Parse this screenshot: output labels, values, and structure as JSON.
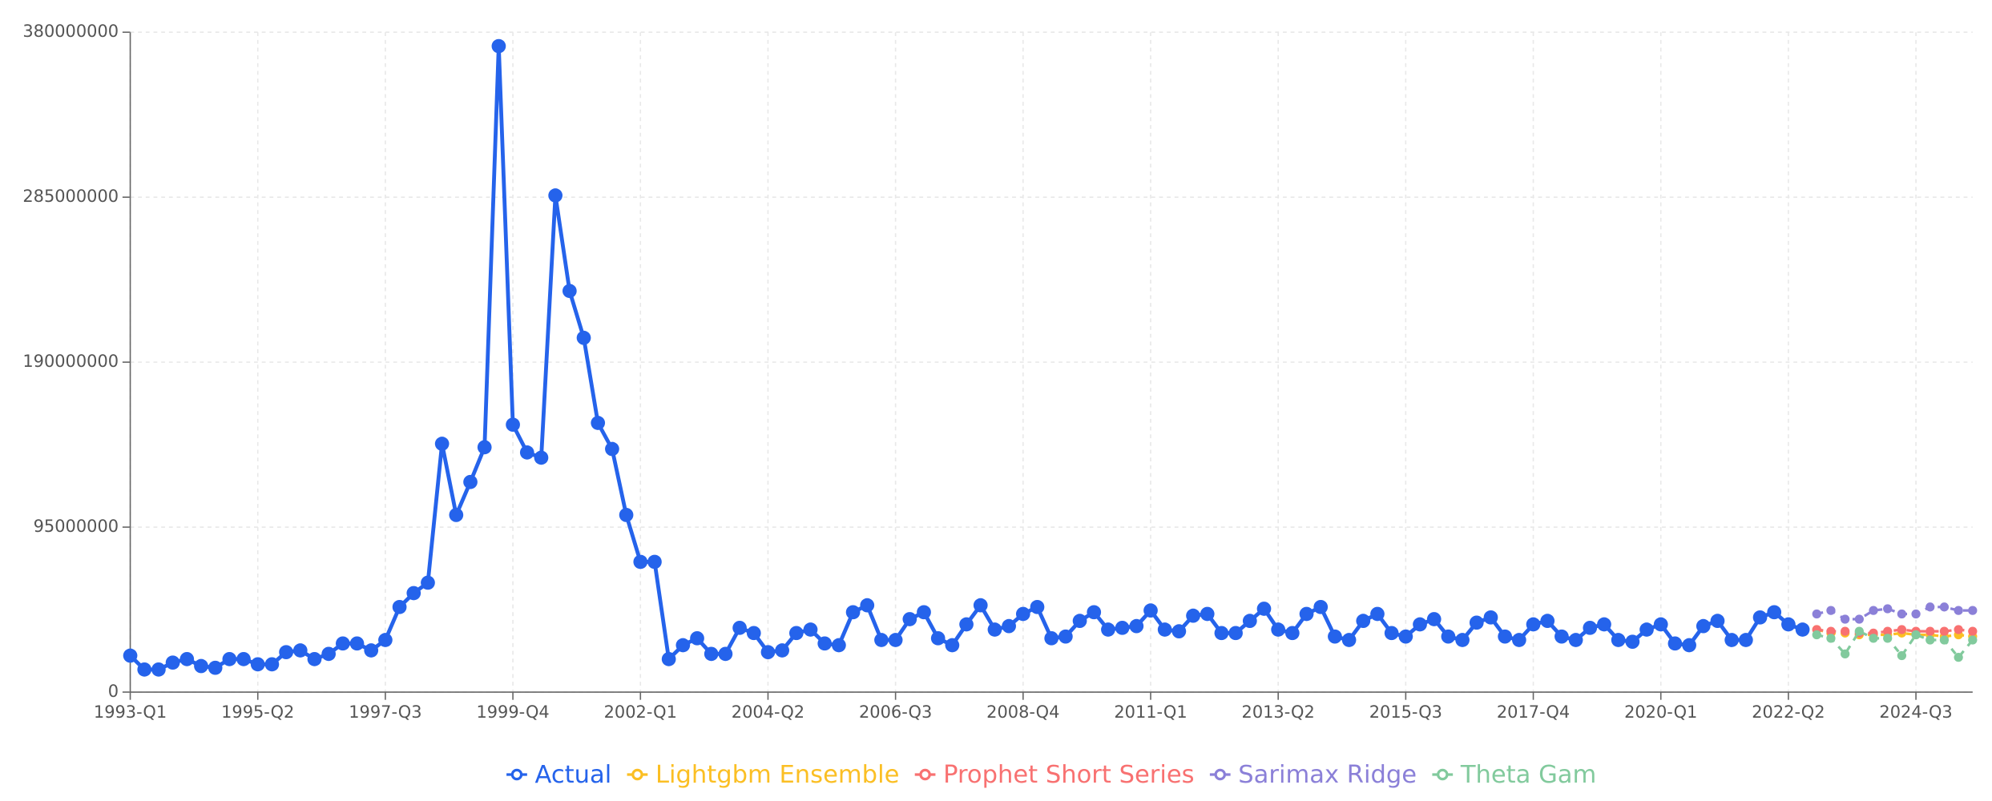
{
  "chart_data": {
    "type": "line",
    "categories": [
      "1993-Q1",
      null,
      null,
      null,
      null,
      null,
      null,
      null,
      null,
      "1995-Q2",
      null,
      null,
      null,
      null,
      null,
      null,
      null,
      null,
      "1997-Q3",
      null,
      null,
      null,
      null,
      null,
      null,
      null,
      null,
      "1999-Q4",
      null,
      null,
      null,
      null,
      null,
      null,
      null,
      null,
      "2002-Q1",
      null,
      null,
      null,
      null,
      null,
      null,
      null,
      null,
      "2004-Q2",
      null,
      null,
      null,
      null,
      null,
      null,
      null,
      null,
      "2006-Q3",
      null,
      null,
      null,
      null,
      null,
      null,
      null,
      null,
      "2008-Q4",
      null,
      null,
      null,
      null,
      null,
      null,
      null,
      null,
      "2011-Q1",
      null,
      null,
      null,
      null,
      null,
      null,
      null,
      null,
      "2013-Q2",
      null,
      null,
      null,
      null,
      null,
      null,
      null,
      null,
      "2015-Q3",
      null,
      null,
      null,
      null,
      null,
      null,
      null,
      null,
      "2017-Q4",
      null,
      null,
      null,
      null,
      null,
      null,
      null,
      null,
      "2020-Q1",
      null,
      null,
      null,
      null,
      null,
      null,
      null,
      null,
      "2022-Q2",
      null,
      null,
      null,
      null,
      null,
      null,
      null,
      null,
      "2024-Q3",
      null,
      null,
      null,
      null
    ],
    "series": [
      {
        "name": "Actual",
        "color": "#2563eb",
        "values": [
          21000000,
          13000000,
          13000000,
          17000000,
          19000000,
          15000000,
          14000000,
          19000000,
          19000000,
          16000000,
          16000000,
          23000000,
          24000000,
          19000000,
          22000000,
          28000000,
          28000000,
          24000000,
          30000000,
          49000000,
          57000000,
          63000000,
          143000000,
          102000000,
          121000000,
          141000000,
          372000000,
          154000000,
          138000000,
          135000000,
          286000000,
          231000000,
          204000000,
          155000000,
          140000000,
          102000000,
          75000000,
          75000000,
          19000000,
          27000000,
          31000000,
          22000000,
          22000000,
          37000000,
          34000000,
          23000000,
          24000000,
          34000000,
          36000000,
          28000000,
          27000000,
          46000000,
          50000000,
          30000000,
          30000000,
          42000000,
          46000000,
          31000000,
          27000000,
          39000000,
          50000000,
          36000000,
          38000000,
          45000000,
          49000000,
          31000000,
          32000000,
          41000000,
          46000000,
          36000000,
          37000000,
          38000000,
          47000000,
          36000000,
          35000000,
          44000000,
          45000000,
          34000000,
          34000000,
          41000000,
          48000000,
          36000000,
          34000000,
          45000000,
          49000000,
          32000000,
          30000000,
          41000000,
          45000000,
          34000000,
          32000000,
          39000000,
          42000000,
          32000000,
          30000000,
          40000000,
          43000000,
          32000000,
          30000000,
          39000000,
          41000000,
          32000000,
          30000000,
          37000000,
          39000000,
          30000000,
          29000000,
          36000000,
          39000000,
          28000000,
          27000000,
          38000000,
          41000000,
          30000000,
          30000000,
          43000000,
          46000000,
          39000000,
          36000000,
          null,
          null,
          null,
          null,
          null,
          null,
          null,
          null,
          null,
          null,
          null,
          null
        ]
      },
      {
        "name": "Lightgbm Ensemble",
        "color": "#fbbf24",
        "values": [
          null,
          null,
          null,
          null,
          null,
          null,
          null,
          null,
          null,
          null,
          null,
          null,
          null,
          null,
          null,
          null,
          null,
          null,
          null,
          null,
          null,
          null,
          null,
          null,
          null,
          null,
          null,
          null,
          null,
          null,
          null,
          null,
          null,
          null,
          null,
          null,
          null,
          null,
          null,
          null,
          null,
          null,
          null,
          null,
          null,
          null,
          null,
          null,
          null,
          null,
          null,
          null,
          null,
          null,
          null,
          null,
          null,
          null,
          null,
          null,
          null,
          null,
          null,
          null,
          null,
          null,
          null,
          null,
          null,
          null,
          null,
          null,
          null,
          null,
          null,
          null,
          null,
          null,
          null,
          null,
          null,
          null,
          null,
          null,
          null,
          null,
          null,
          null,
          null,
          null,
          null,
          null,
          null,
          null,
          null,
          null,
          null,
          null,
          null,
          null,
          null,
          null,
          null,
          null,
          null,
          null,
          null,
          null,
          null,
          null,
          null,
          null,
          null,
          null,
          null,
          null,
          null,
          null,
          null,
          36000000,
          34000000,
          34000000,
          33000000,
          33000000,
          33000000,
          34000000,
          33000000,
          33000000,
          32000000,
          33000000,
          32000000
        ]
      },
      {
        "name": "Prophet Short Series",
        "color": "#f87171",
        "values": [
          null,
          null,
          null,
          null,
          null,
          null,
          null,
          null,
          null,
          null,
          null,
          null,
          null,
          null,
          null,
          null,
          null,
          null,
          null,
          null,
          null,
          null,
          null,
          null,
          null,
          null,
          null,
          null,
          null,
          null,
          null,
          null,
          null,
          null,
          null,
          null,
          null,
          null,
          null,
          null,
          null,
          null,
          null,
          null,
          null,
          null,
          null,
          null,
          null,
          null,
          null,
          null,
          null,
          null,
          null,
          null,
          null,
          null,
          null,
          null,
          null,
          null,
          null,
          null,
          null,
          null,
          null,
          null,
          null,
          null,
          null,
          null,
          null,
          null,
          null,
          null,
          null,
          null,
          null,
          null,
          null,
          null,
          null,
          null,
          null,
          null,
          null,
          null,
          null,
          null,
          null,
          null,
          null,
          null,
          null,
          null,
          null,
          null,
          null,
          null,
          null,
          null,
          null,
          null,
          null,
          null,
          null,
          null,
          null,
          null,
          null,
          null,
          null,
          null,
          null,
          null,
          null,
          null,
          null,
          36000000,
          35000000,
          35000000,
          34000000,
          34000000,
          35000000,
          36000000,
          35000000,
          35000000,
          35000000,
          36000000,
          35000000
        ]
      },
      {
        "name": "Sarimax Ridge",
        "color": "#8b80d8",
        "values": [
          null,
          null,
          null,
          null,
          null,
          null,
          null,
          null,
          null,
          null,
          null,
          null,
          null,
          null,
          null,
          null,
          null,
          null,
          null,
          null,
          null,
          null,
          null,
          null,
          null,
          null,
          null,
          null,
          null,
          null,
          null,
          null,
          null,
          null,
          null,
          null,
          null,
          null,
          null,
          null,
          null,
          null,
          null,
          null,
          null,
          null,
          null,
          null,
          null,
          null,
          null,
          null,
          null,
          null,
          null,
          null,
          null,
          null,
          null,
          null,
          null,
          null,
          null,
          null,
          null,
          null,
          null,
          null,
          null,
          null,
          null,
          null,
          null,
          null,
          null,
          null,
          null,
          null,
          null,
          null,
          null,
          null,
          null,
          null,
          null,
          null,
          null,
          null,
          null,
          null,
          null,
          null,
          null,
          null,
          null,
          null,
          null,
          null,
          null,
          null,
          null,
          null,
          null,
          null,
          null,
          null,
          null,
          null,
          null,
          null,
          null,
          null,
          null,
          null,
          null,
          null,
          null,
          null,
          null,
          45000000,
          47000000,
          42000000,
          42000000,
          47000000,
          48000000,
          45000000,
          45000000,
          49000000,
          49000000,
          47000000,
          47000000
        ]
      },
      {
        "name": "Theta Gam",
        "color": "#82ca9d",
        "values": [
          null,
          null,
          null,
          null,
          null,
          null,
          null,
          null,
          null,
          null,
          null,
          null,
          null,
          null,
          null,
          null,
          null,
          null,
          null,
          null,
          null,
          null,
          null,
          null,
          null,
          null,
          null,
          null,
          null,
          null,
          null,
          null,
          null,
          null,
          null,
          null,
          null,
          null,
          null,
          null,
          null,
          null,
          null,
          null,
          null,
          null,
          null,
          null,
          null,
          null,
          null,
          null,
          null,
          null,
          null,
          null,
          null,
          null,
          null,
          null,
          null,
          null,
          null,
          null,
          null,
          null,
          null,
          null,
          null,
          null,
          null,
          null,
          null,
          null,
          null,
          null,
          null,
          null,
          null,
          null,
          null,
          null,
          null,
          null,
          null,
          null,
          null,
          null,
          null,
          null,
          null,
          null,
          null,
          null,
          null,
          null,
          null,
          null,
          null,
          null,
          null,
          null,
          null,
          null,
          null,
          null,
          null,
          null,
          null,
          null,
          null,
          null,
          null,
          null,
          null,
          null,
          null,
          null,
          null,
          33000000,
          31000000,
          22000000,
          35000000,
          31000000,
          31000000,
          21000000,
          33000000,
          30000000,
          30000000,
          20000000,
          30000000
        ]
      }
    ],
    "ylim": [
      0,
      380000000
    ],
    "yticks": [
      0,
      95000000,
      190000000,
      285000000,
      380000000
    ],
    "grid": true,
    "legend": "bottom"
  }
}
